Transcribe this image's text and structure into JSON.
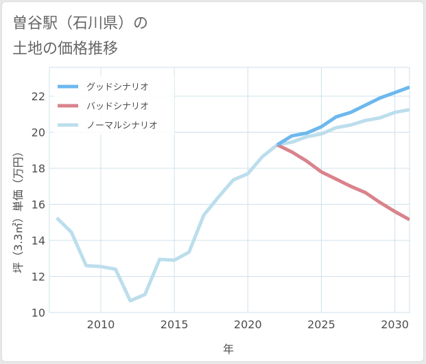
{
  "chart_data": {
    "type": "line",
    "title_lines": [
      "曽谷駅（石川県）の",
      "土地の価格推移"
    ],
    "xlabel": "年",
    "ylabel": "坪（3.3㎡）単価（万円）",
    "xlim": [
      2006.5,
      2031
    ],
    "ylim": [
      10,
      23.6
    ],
    "x_ticks": [
      2010,
      2015,
      2020,
      2025,
      2030
    ],
    "x_tick_labels": [
      "2010",
      "2015",
      "2020",
      "2025",
      "2030"
    ],
    "y_ticks": [
      10,
      12,
      14,
      16,
      18,
      20,
      22
    ],
    "y_tick_labels": [
      "10",
      "12",
      "14",
      "16",
      "18",
      "20",
      "22"
    ],
    "grid": true,
    "legend_position": "top-left",
    "series": [
      {
        "name": "グッドシナリオ",
        "color": "#6cb8ee",
        "x": [
          2022,
          2023,
          2024,
          2025,
          2026,
          2027,
          2028,
          2029,
          2030,
          2031
        ],
        "values": [
          19.3,
          19.8,
          19.95,
          20.3,
          20.85,
          21.1,
          21.5,
          21.9,
          22.2,
          22.5
        ]
      },
      {
        "name": "バッドシナリオ",
        "color": "#d9838c",
        "x": [
          2022,
          2023,
          2024,
          2025,
          2026,
          2027,
          2028,
          2029,
          2030,
          2031
        ],
        "values": [
          19.3,
          18.9,
          18.4,
          17.8,
          17.4,
          17.0,
          16.65,
          16.1,
          15.6,
          15.15
        ]
      },
      {
        "name": "ノーマルシナリオ",
        "color": "#bcdeec",
        "x": [
          2007,
          2008,
          2009,
          2010,
          2011,
          2012,
          2013,
          2014,
          2015,
          2016,
          2017,
          2018,
          2019,
          2020,
          2021,
          2022,
          2023,
          2024,
          2025,
          2026,
          2027,
          2028,
          2029,
          2030,
          2031
        ],
        "values": [
          15.25,
          14.45,
          12.6,
          12.55,
          12.4,
          10.65,
          11.0,
          12.95,
          12.9,
          13.35,
          15.4,
          16.4,
          17.35,
          17.7,
          18.65,
          19.3,
          19.45,
          19.75,
          19.9,
          20.25,
          20.4,
          20.65,
          20.8,
          21.1,
          21.25
        ]
      }
    ]
  }
}
